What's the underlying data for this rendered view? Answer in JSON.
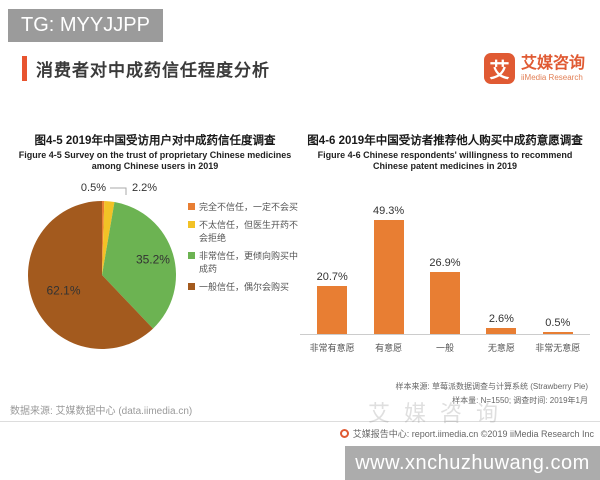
{
  "overlay": {
    "badge": "TG: MYYJJPP",
    "watermark": "艾媒咨询",
    "bottom_bar_url": "www.xnchuzhuwang.com"
  },
  "header": {
    "title": "消费者对中成药信任程度分析",
    "accent_color": "#E8542F"
  },
  "logo": {
    "mark": "艾",
    "name_zh": "艾媒咨询",
    "name_en": "iiMedia Research",
    "brand_color": "#E05A33"
  },
  "chart_data": [
    {
      "type": "pie",
      "title": "图4-5 2019年中国受访用户对中成药信任度调查",
      "subtitle": "Figure 4-5 Survey on the trust of proprietary Chinese medicines among Chinese users in 2019",
      "labels": [
        "完全不信任，一定不会买",
        "不太信任，但医生开药不会拒绝",
        "非常信任，更倾向购买中成药",
        "一般信任，偶尔会购买"
      ],
      "values": [
        0.5,
        2.2,
        35.2,
        62.1
      ],
      "value_labels": [
        "0.5%",
        "2.2%",
        "35.2%",
        "62.1%"
      ],
      "colors": [
        "#E87E33",
        "#F2C226",
        "#6CB352",
        "#A35A1E"
      ],
      "legend_position": "right",
      "start_angle_deg": -90,
      "direction": "clockwise"
    },
    {
      "type": "bar",
      "title": "图4-6 2019年中国受访者推荐他人购买中成药意愿调查",
      "subtitle": "Figure 4-6 Chinese respondents' willingness to recommend Chinese patent medicines in 2019",
      "categories": [
        "非常有意愿",
        "有意愿",
        "一般",
        "无意愿",
        "非常无意愿"
      ],
      "values": [
        20.7,
        49.3,
        26.9,
        2.6,
        0.5
      ],
      "value_labels": [
        "20.7%",
        "49.3%",
        "26.9%",
        "2.6%",
        "0.5%"
      ],
      "bar_color": "#E87E33",
      "xlabel": "",
      "ylabel": "",
      "ylim": [
        0,
        55
      ],
      "grid": false,
      "notes": [
        "样本来源: 草莓派数据调查与计算系统 (Strawberry Pie)",
        "样本量: N=1550; 调查时间: 2019年1月"
      ]
    }
  ],
  "footer": {
    "data_source": "数据来源: 艾媒数据中心 (data.iimedia.cn)",
    "report_center": "艾媒报告中心: report.iimedia.cn ©2019 iiMedia Research Inc"
  }
}
